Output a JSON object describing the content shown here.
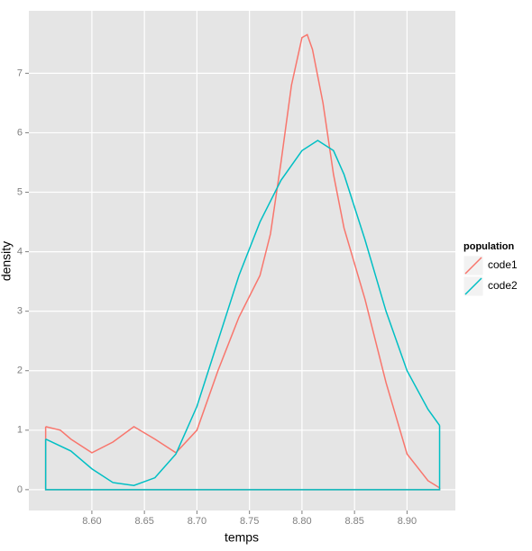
{
  "chart_data": {
    "type": "density",
    "x_label": "temps",
    "y_label": "density",
    "legend_title": "population",
    "legend_position": "right",
    "grid": true,
    "xlim": [
      8.54,
      8.946
    ],
    "ylim": [
      -0.35,
      8.05
    ],
    "xticks": [
      {
        "value": 8.6,
        "label": "8.60"
      },
      {
        "value": 8.65,
        "label": "8.65"
      },
      {
        "value": 8.7,
        "label": "8.70"
      },
      {
        "value": 8.75,
        "label": "8.75"
      },
      {
        "value": 8.8,
        "label": "8.80"
      },
      {
        "value": 8.85,
        "label": "8.85"
      },
      {
        "value": 8.9,
        "label": "8.90"
      }
    ],
    "yticks": [
      0,
      1,
      2,
      3,
      4,
      5,
      6,
      7
    ],
    "series": [
      {
        "name": "code1",
        "color": "#F8766D",
        "x": [
          8.556,
          8.57,
          8.58,
          8.6,
          8.62,
          8.64,
          8.66,
          8.68,
          8.7,
          8.72,
          8.74,
          8.76,
          8.77,
          8.78,
          8.79,
          8.8,
          8.805,
          8.81,
          8.82,
          8.83,
          8.84,
          8.86,
          8.88,
          8.9,
          8.92,
          8.931
        ],
        "values": [
          1.06,
          1.0,
          0.85,
          0.62,
          0.8,
          1.06,
          0.85,
          0.62,
          1.0,
          2.0,
          2.9,
          3.6,
          4.3,
          5.5,
          6.8,
          7.6,
          7.65,
          7.4,
          6.5,
          5.3,
          4.4,
          3.2,
          1.8,
          0.6,
          0.15,
          0.03
        ]
      },
      {
        "name": "code2",
        "color": "#00BFC4",
        "x": [
          8.556,
          8.58,
          8.6,
          8.62,
          8.64,
          8.66,
          8.68,
          8.7,
          8.72,
          8.74,
          8.76,
          8.78,
          8.8,
          8.815,
          8.83,
          8.84,
          8.86,
          8.88,
          8.9,
          8.92,
          8.931
        ],
        "values": [
          0.85,
          0.65,
          0.35,
          0.12,
          0.07,
          0.2,
          0.6,
          1.4,
          2.5,
          3.6,
          4.5,
          5.2,
          5.7,
          5.87,
          5.7,
          5.3,
          4.2,
          3.0,
          2.0,
          1.35,
          1.08
        ]
      }
    ]
  }
}
